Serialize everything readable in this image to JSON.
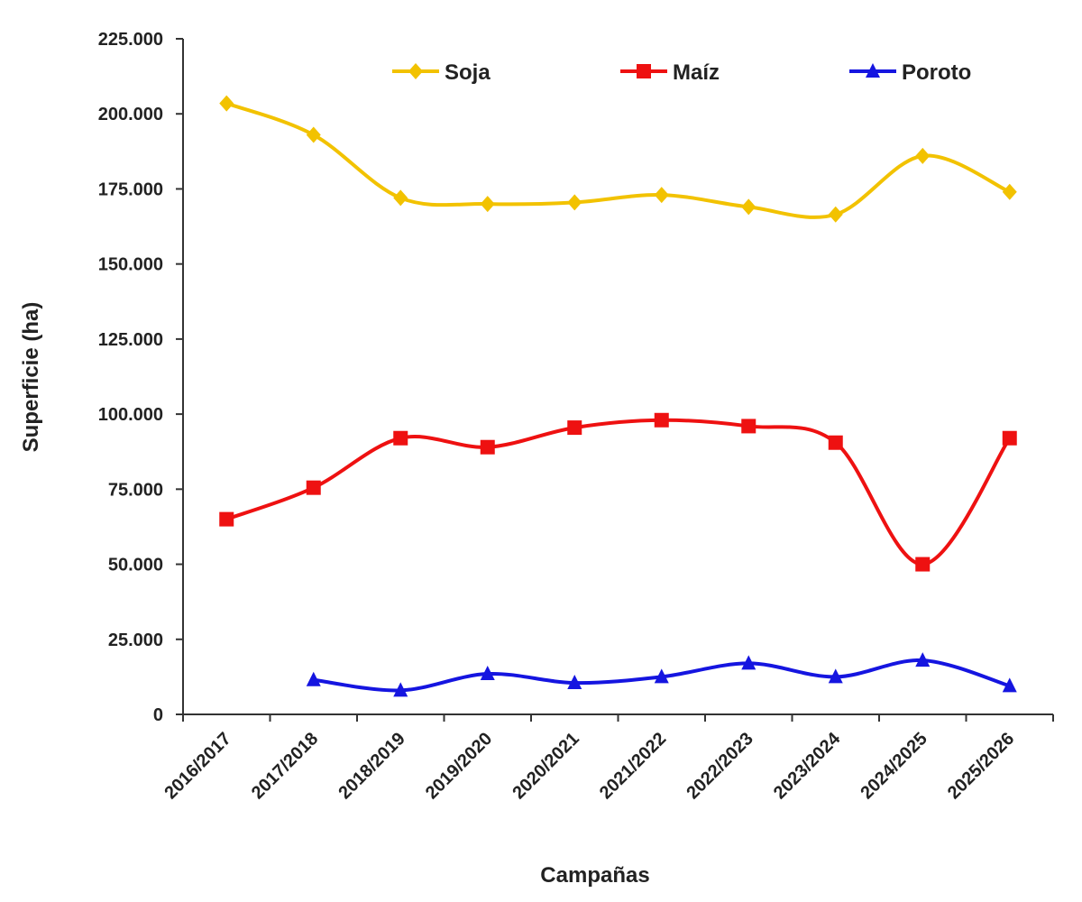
{
  "chart_data": {
    "type": "line",
    "categories": [
      "2016/2017",
      "2017/2018",
      "2018/2019",
      "2019/2020",
      "2020/2021",
      "2021/2022",
      "2022/2023",
      "2023/2024",
      "2024/2025",
      "2025/2026"
    ],
    "series": [
      {
        "name": "Soja",
        "color": "#F2C200",
        "marker": "diamond",
        "values": [
          203500,
          193000,
          172000,
          170000,
          170500,
          173000,
          169000,
          166500,
          186000,
          174000
        ]
      },
      {
        "name": "Maíz",
        "color": "#EE1111",
        "marker": "square",
        "values": [
          65000,
          75500,
          92000,
          89000,
          95500,
          98000,
          96000,
          90500,
          50000,
          92000
        ]
      },
      {
        "name": "Poroto",
        "color": "#1515E0",
        "marker": "triangle",
        "values": [
          null,
          11500,
          8000,
          13500,
          10500,
          12500,
          17000,
          12500,
          18000,
          9500
        ]
      }
    ],
    "xlabel": "Campañas",
    "ylabel": "Superficie (ha)",
    "ylim": [
      0,
      225000
    ],
    "yticks": [
      "0",
      "25.000",
      "50.000",
      "75.000",
      "100.000",
      "125.000",
      "150.000",
      "175.000",
      "200.000",
      "225.000"
    ],
    "grid": false,
    "legend_position": "top"
  }
}
